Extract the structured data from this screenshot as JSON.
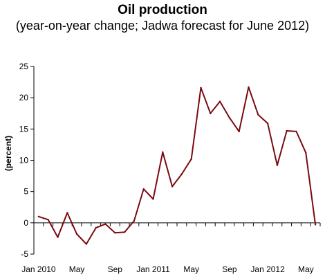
{
  "chart_data": {
    "type": "line",
    "title": "Oil production",
    "subtitle": "(year-on-year change; Jadwa forecast for June 2012)",
    "xlabel": "",
    "ylabel": "(percent)",
    "ylim": [
      -5,
      25
    ],
    "yticks": [
      "25",
      "20",
      "15",
      "10",
      "5",
      "0",
      "-5"
    ],
    "ytick_values": [
      25,
      20,
      15,
      10,
      5,
      0,
      -5
    ],
    "x": [
      "Jan 2010",
      "Feb 2010",
      "Mar 2010",
      "Apr 2010",
      "May 2010",
      "Jun 2010",
      "Jul 2010",
      "Aug 2010",
      "Sep 2010",
      "Oct 2010",
      "Nov 2010",
      "Dec 2010",
      "Jan 2011",
      "Feb 2011",
      "Mar 2011",
      "Apr 2011",
      "May 2011",
      "Jun 2011",
      "Jul 2011",
      "Aug 2011",
      "Sep 2011",
      "Oct 2011",
      "Nov 2011",
      "Dec 2011",
      "Jan 2012",
      "Feb 2012",
      "Mar 2012",
      "Apr 2012",
      "May 2012",
      "Jun 2012"
    ],
    "xtick_labels": [
      {
        "index": 0,
        "label": "Jan 2010"
      },
      {
        "index": 4,
        "label": "May"
      },
      {
        "index": 8,
        "label": "Sep"
      },
      {
        "index": 12,
        "label": "Jan 2011"
      },
      {
        "index": 16,
        "label": "May"
      },
      {
        "index": 20,
        "label": "Sep"
      },
      {
        "index": 24,
        "label": "Jan 2012"
      },
      {
        "index": 28,
        "label": "May"
      }
    ],
    "series": [
      {
        "values": [
          1.0,
          0.5,
          -2.3,
          1.6,
          -1.8,
          -3.4,
          -0.8,
          -0.2,
          -1.6,
          -1.5,
          0.3,
          5.4,
          3.8,
          11.3,
          5.8,
          7.8,
          10.2,
          21.6,
          17.5,
          19.4,
          16.8,
          14.6,
          21.7,
          17.3,
          15.9,
          9.2,
          14.7,
          14.6,
          11.2,
          -0.3
        ],
        "color": "#7a0a10"
      }
    ],
    "grid": false,
    "legend": "none"
  }
}
